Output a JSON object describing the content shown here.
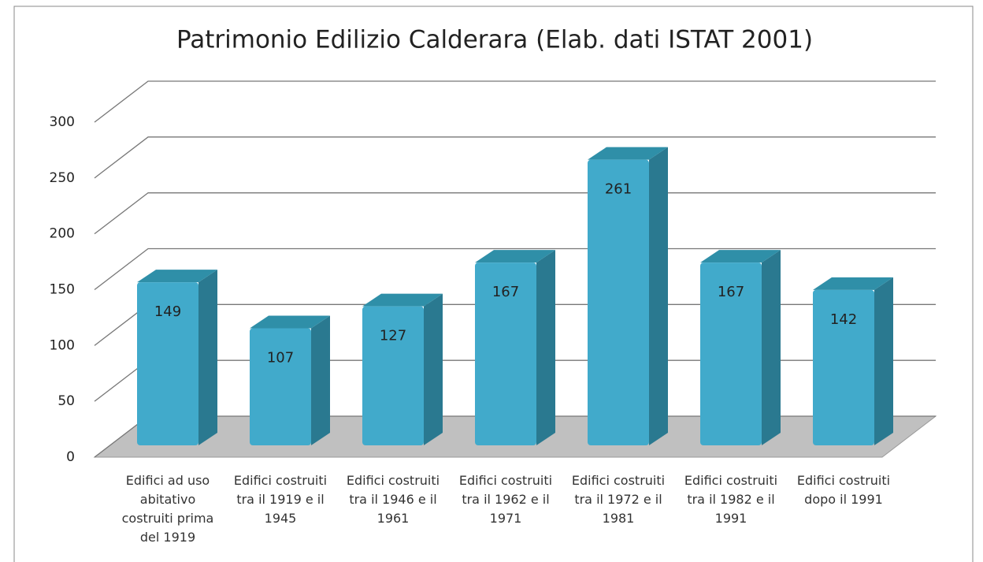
{
  "chart_data": {
    "type": "bar3d",
    "title": "Patrimonio Edilizio Calderara (Elab. dati ISTAT 2001)",
    "categories": [
      "Edifici ad uso abitativo costruiti prima del 1919",
      "Edifici costruiti tra il 1919 e il 1945",
      "Edifici costruiti tra il 1946 e il 1961",
      "Edifici costruiti tra il 1962 e il 1971",
      "Edifici costruiti tra il 1972 e il 1981",
      "Edifici costruiti tra il 1982 e il 1991",
      "Edifici costruiti dopo il 1991"
    ],
    "values": [
      149,
      107,
      127,
      167,
      261,
      167,
      142
    ],
    "color": "#41aacb",
    "ylim": [
      0,
      300
    ],
    "yticks": [
      0,
      50,
      100,
      150,
      200,
      250,
      300
    ],
    "grid": true
  }
}
